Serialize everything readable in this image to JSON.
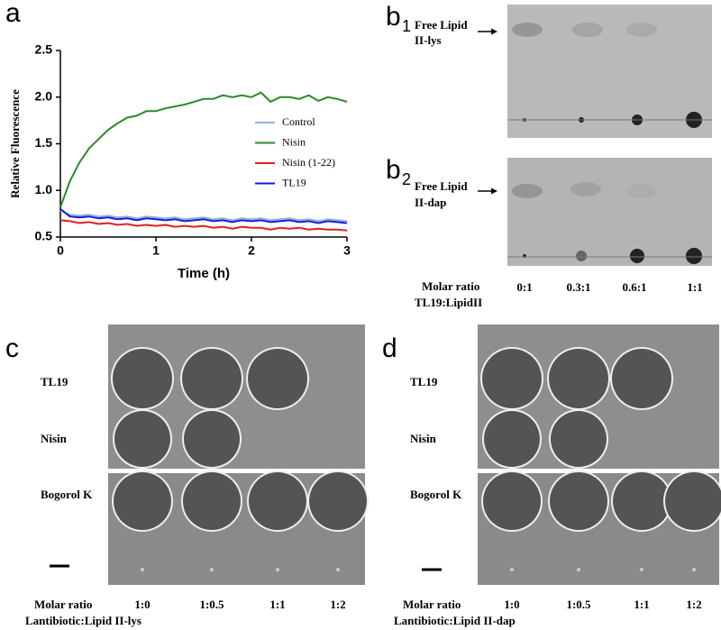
{
  "chart_data": {
    "type": "line",
    "y_label": "Relative Fluorescence",
    "x_label": "Time (h)",
    "x": [
      0,
      0.1,
      0.2,
      0.3,
      0.4,
      0.5,
      0.6,
      0.7,
      0.8,
      0.9,
      1.0,
      1.1,
      1.2,
      1.3,
      1.4,
      1.5,
      1.6,
      1.7,
      1.8,
      1.9,
      2.0,
      2.1,
      2.2,
      2.3,
      2.4,
      2.5,
      2.6,
      2.7,
      2.8,
      2.9,
      3.0
    ],
    "series": [
      {
        "name": "Control",
        "color": "#8fb4d4",
        "values": [
          0.78,
          0.74,
          0.73,
          0.74,
          0.72,
          0.73,
          0.71,
          0.72,
          0.7,
          0.72,
          0.71,
          0.7,
          0.71,
          0.69,
          0.7,
          0.71,
          0.69,
          0.7,
          0.68,
          0.7,
          0.69,
          0.7,
          0.68,
          0.69,
          0.7,
          0.68,
          0.69,
          0.67,
          0.69,
          0.68,
          0.67
        ]
      },
      {
        "name": "Nisin",
        "color": "#2a8a2a",
        "values": [
          0.82,
          1.1,
          1.3,
          1.45,
          1.55,
          1.65,
          1.72,
          1.78,
          1.8,
          1.85,
          1.85,
          1.88,
          1.9,
          1.92,
          1.95,
          1.98,
          1.98,
          2.02,
          2.0,
          2.02,
          2.0,
          2.05,
          1.95,
          2.0,
          2.0,
          1.98,
          2.02,
          1.96,
          2.0,
          1.98,
          1.95
        ]
      },
      {
        "name": "Nisin (1-22)",
        "color": "#e02020",
        "values": [
          0.68,
          0.67,
          0.65,
          0.66,
          0.64,
          0.65,
          0.63,
          0.64,
          0.62,
          0.63,
          0.62,
          0.63,
          0.61,
          0.62,
          0.61,
          0.62,
          0.6,
          0.61,
          0.59,
          0.61,
          0.6,
          0.6,
          0.58,
          0.6,
          0.59,
          0.6,
          0.58,
          0.59,
          0.58,
          0.58,
          0.57
        ]
      },
      {
        "name": "TL19",
        "color": "#1a1adb",
        "values": [
          0.8,
          0.72,
          0.71,
          0.72,
          0.7,
          0.71,
          0.69,
          0.7,
          0.68,
          0.7,
          0.69,
          0.68,
          0.69,
          0.67,
          0.68,
          0.69,
          0.67,
          0.68,
          0.66,
          0.68,
          0.67,
          0.68,
          0.66,
          0.67,
          0.68,
          0.66,
          0.67,
          0.65,
          0.67,
          0.66,
          0.65
        ]
      }
    ],
    "xlim": [
      0,
      3
    ],
    "xticks": [
      0,
      1,
      2,
      3
    ],
    "ylim": [
      0.5,
      2.5
    ],
    "yticks": [
      0.5,
      {
        "value": 1,
        "label": "1.0"
      },
      1.5,
      {
        "value": 2,
        "label": "2.0"
      },
      2.5
    ]
  },
  "panel_labels": {
    "a": "a",
    "b1": [
      "b",
      "1"
    ],
    "b2": [
      "b",
      "2"
    ],
    "c": "c",
    "d": "d"
  },
  "tlc": {
    "lys_label": [
      "Free Lipid",
      "II-lys"
    ],
    "dap_label": [
      "Free Lipid",
      "II-dap"
    ],
    "ratio_title": [
      "Molar ratio",
      "TL19:LipidII"
    ],
    "ratios": [
      "0:1",
      "0.3:1",
      "0.6:1",
      "1:1"
    ]
  },
  "plate_c": {
    "rows": [
      "TL19",
      "Nisin",
      "Bogorol K"
    ],
    "ratio_title": [
      "Molar ratio",
      "Lantibiotic:Lipid II-lys"
    ],
    "ratios": [
      "1:0",
      "1:0.5",
      "1:1",
      "1:2"
    ]
  },
  "plate_d": {
    "rows": [
      "TL19",
      "Nisin",
      "Bogorol K"
    ],
    "ratio_title": [
      "Molar ratio",
      "Lantibiotic:Lipid II-dap"
    ],
    "ratios": [
      "1:0",
      "1:0.5",
      "1:1",
      "1:2"
    ]
  }
}
